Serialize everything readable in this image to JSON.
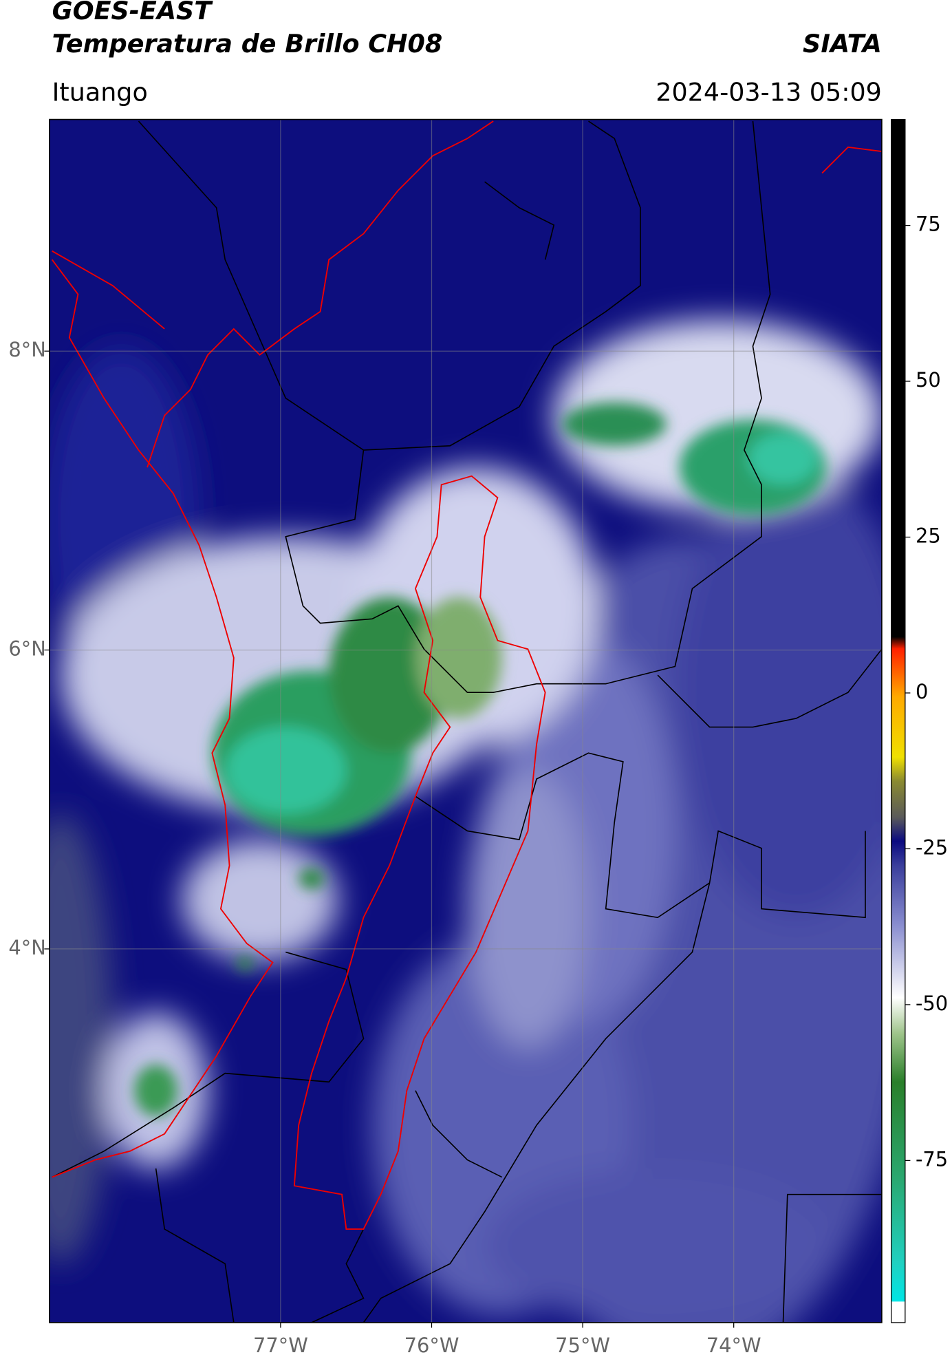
{
  "header": {
    "title": "GOES-EAST",
    "subtitle": "Temperatura de Brillo CH08",
    "source": "SIATA",
    "location": "Ituango",
    "datetime": "2024-03-13 05:09"
  },
  "map": {
    "lon_range": [
      -78.53,
      -73.02
    ],
    "lat_range": [
      1.5,
      9.55
    ],
    "lon_ticks": [
      {
        "value": -77,
        "label": "77°W"
      },
      {
        "value": -76,
        "label": "76°W"
      },
      {
        "value": -75,
        "label": "75°W"
      },
      {
        "value": -74,
        "label": "74°W"
      }
    ],
    "lat_ticks": [
      {
        "value": 8,
        "label": "8°N"
      },
      {
        "value": 6,
        "label": "6°N"
      },
      {
        "value": 4,
        "label": "4°N"
      }
    ]
  },
  "colorbar": {
    "range": [
      -101,
      92
    ],
    "ticks": [
      75,
      50,
      25,
      0,
      -25,
      -50,
      -75
    ]
  }
}
